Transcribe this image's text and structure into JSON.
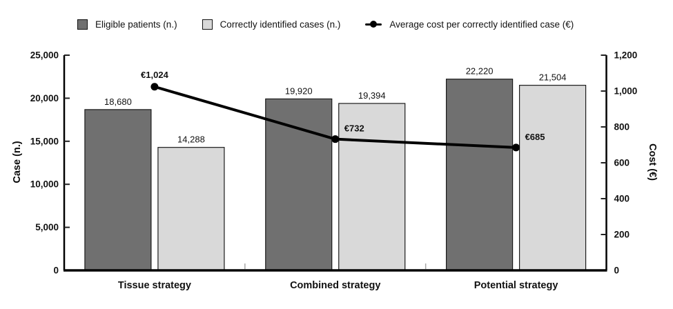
{
  "legend": {
    "items": [
      {
        "label": "Eligible patients (n.)",
        "swatch": "dark-square"
      },
      {
        "label": "Correctly identified cases (n.)",
        "swatch": "light-square"
      },
      {
        "label": "Average cost per correctly identified case (€)",
        "swatch": "line-dot-marker"
      }
    ]
  },
  "colors": {
    "dark_bar": "#707070",
    "light_bar": "#d9d9d9",
    "bar_border": "#1a1a1a",
    "line": "#000000",
    "axis": "#000000",
    "tick": "#222222",
    "boundary_tick": "#a6a6a6",
    "text": "#111111"
  },
  "chart_data": {
    "type": "bar",
    "subtype": "combo-bar-line-dual-axis",
    "title": "",
    "categories": [
      "Tissue strategy",
      "Combined strategy",
      "Potential strategy"
    ],
    "series": [
      {
        "key": "eligible",
        "name": "Eligible patients (n.)",
        "values": [
          18680,
          19920,
          22220
        ],
        "labels": [
          "18,680",
          "19,920",
          "22,220"
        ],
        "color": "#707070",
        "axis": "left"
      },
      {
        "key": "identified",
        "name": "Correctly identified cases (n.)",
        "values": [
          14288,
          19394,
          21504
        ],
        "labels": [
          "14,288",
          "19,394",
          "21,504"
        ],
        "color": "#d9d9d9",
        "axis": "left"
      }
    ],
    "line_series": {
      "key": "avg-cost",
      "name": "Average cost per correctly identified case (€)",
      "values": [
        1024,
        732,
        685
      ],
      "labels": [
        "€1,024",
        "€732",
        "€685"
      ],
      "color": "#000000",
      "axis": "right"
    },
    "axes": {
      "left": {
        "title": "Case (n.)",
        "min": 0,
        "max": 25000,
        "step": 5000,
        "tick_labels": [
          "0",
          "5,000",
          "10,000",
          "15,000",
          "20,000",
          "25,000"
        ]
      },
      "right": {
        "title": "Cost (€)",
        "min": 0,
        "max": 1200,
        "step": 200,
        "tick_labels": [
          "0",
          "200",
          "400",
          "600",
          "800",
          "1,000",
          "1,200"
        ]
      }
    },
    "grid": false,
    "legend_position": "top"
  }
}
